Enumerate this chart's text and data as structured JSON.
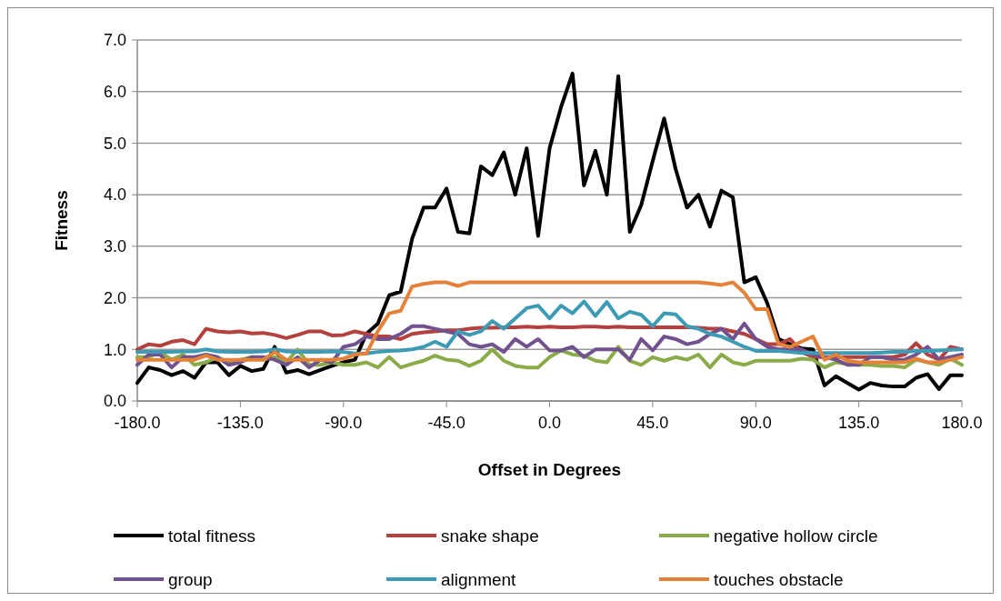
{
  "chart_data": {
    "type": "line",
    "xlabel": "Offset in Degrees",
    "ylabel": "Fitness",
    "x": [
      -180,
      -175,
      -170,
      -165,
      -160,
      -155,
      -150,
      -145,
      -140,
      -135,
      -130,
      -125,
      -120,
      -115,
      -110,
      -105,
      -100,
      -95,
      -90,
      -85,
      -80,
      -75,
      -70,
      -65,
      -60,
      -55,
      -50,
      -45,
      -40,
      -35,
      -30,
      -25,
      -20,
      -15,
      -10,
      -5,
      0,
      5,
      10,
      15,
      20,
      25,
      30,
      35,
      40,
      45,
      50,
      55,
      60,
      65,
      70,
      75,
      80,
      85,
      90,
      95,
      100,
      105,
      110,
      115,
      120,
      125,
      130,
      135,
      140,
      145,
      150,
      155,
      160,
      165,
      170,
      175,
      180
    ],
    "xlim": [
      -180,
      180
    ],
    "xticks": [
      {
        "value": -180,
        "label": "-180.0"
      },
      {
        "value": -135,
        "label": "-135.0"
      },
      {
        "value": -90,
        "label": "-90.0"
      },
      {
        "value": -45,
        "label": "-45.0"
      },
      {
        "value": 0,
        "label": "0.0"
      },
      {
        "value": 45,
        "label": "45.0"
      },
      {
        "value": 90,
        "label": "90.0"
      },
      {
        "value": 135,
        "label": "135.0"
      },
      {
        "value": 180,
        "label": "180.0"
      }
    ],
    "ylim": [
      0,
      7
    ],
    "yticks": [
      {
        "value": 0,
        "label": "0.0"
      },
      {
        "value": 1,
        "label": "1.0"
      },
      {
        "value": 2,
        "label": "2.0"
      },
      {
        "value": 3,
        "label": "3.0"
      },
      {
        "value": 4,
        "label": "4.0"
      },
      {
        "value": 5,
        "label": "5.0"
      },
      {
        "value": 6,
        "label": "6.0"
      },
      {
        "value": 7,
        "label": "7.0"
      }
    ],
    "grid": "y",
    "legend": "bottom",
    "line_style": "solid",
    "marker": "none",
    "series": [
      {
        "name": "total fitness",
        "color": "#000000",
        "values": [
          0.35,
          0.65,
          0.6,
          0.5,
          0.58,
          0.45,
          0.75,
          0.75,
          0.5,
          0.68,
          0.58,
          0.62,
          1.05,
          0.55,
          0.6,
          0.52,
          0.6,
          0.68,
          0.75,
          0.8,
          1.3,
          1.5,
          2.05,
          2.12,
          3.15,
          3.75,
          3.75,
          4.12,
          3.28,
          3.25,
          4.55,
          4.38,
          4.82,
          4.0,
          4.9,
          3.2,
          4.9,
          5.7,
          6.35,
          4.18,
          4.85,
          4.0,
          6.3,
          3.28,
          3.8,
          4.65,
          5.48,
          4.5,
          3.75,
          4.0,
          3.38,
          4.08,
          3.95,
          2.3,
          2.4,
          1.9,
          1.2,
          1.1,
          1.02,
          1.0,
          0.3,
          0.48,
          0.35,
          0.22,
          0.35,
          0.3,
          0.28,
          0.28,
          0.45,
          0.52,
          0.23,
          0.5,
          0.5
        ]
      },
      {
        "name": "snake shape",
        "color": "#b5413e",
        "values": [
          1.0,
          1.1,
          1.07,
          1.15,
          1.18,
          1.1,
          1.4,
          1.35,
          1.33,
          1.35,
          1.31,
          1.32,
          1.28,
          1.22,
          1.28,
          1.35,
          1.35,
          1.27,
          1.28,
          1.35,
          1.3,
          1.25,
          1.25,
          1.2,
          1.3,
          1.33,
          1.35,
          1.37,
          1.37,
          1.4,
          1.42,
          1.42,
          1.43,
          1.43,
          1.44,
          1.43,
          1.44,
          1.43,
          1.43,
          1.44,
          1.44,
          1.43,
          1.44,
          1.43,
          1.43,
          1.43,
          1.43,
          1.43,
          1.43,
          1.42,
          1.4,
          1.4,
          1.35,
          1.3,
          1.2,
          1.1,
          1.1,
          1.2,
          0.95,
          0.85,
          0.85,
          0.85,
          0.85,
          0.85,
          0.85,
          0.85,
          0.85,
          0.9,
          1.12,
          0.9,
          0.8,
          1.05,
          1.0
        ]
      },
      {
        "name": "negative hollow circle",
        "color": "#8aac48",
        "values": [
          0.85,
          0.85,
          0.95,
          0.8,
          0.9,
          0.7,
          0.75,
          0.85,
          0.75,
          0.8,
          0.85,
          0.8,
          0.85,
          0.75,
          1.0,
          0.7,
          0.7,
          0.75,
          0.7,
          0.7,
          0.75,
          0.65,
          0.85,
          0.65,
          0.72,
          0.78,
          0.88,
          0.8,
          0.78,
          0.68,
          0.78,
          1.0,
          0.78,
          0.68,
          0.65,
          0.65,
          0.85,
          0.98,
          0.9,
          0.88,
          0.78,
          0.75,
          1.05,
          0.78,
          0.7,
          0.85,
          0.78,
          0.85,
          0.8,
          0.9,
          0.65,
          0.9,
          0.75,
          0.7,
          0.78,
          0.78,
          0.78,
          0.78,
          0.82,
          0.8,
          0.65,
          0.75,
          0.72,
          0.7,
          0.7,
          0.68,
          0.68,
          0.65,
          0.8,
          0.75,
          0.7,
          0.82,
          0.7
        ]
      },
      {
        "name": "group",
        "color": "#71528f",
        "values": [
          0.7,
          0.9,
          0.9,
          0.65,
          0.85,
          0.85,
          0.9,
          0.85,
          0.7,
          0.75,
          0.85,
          0.85,
          0.8,
          0.7,
          0.85,
          0.65,
          0.8,
          0.75,
          1.05,
          1.1,
          1.25,
          1.2,
          1.2,
          1.3,
          1.45,
          1.45,
          1.4,
          1.35,
          1.3,
          1.1,
          1.05,
          1.1,
          0.95,
          1.2,
          1.05,
          1.2,
          0.98,
          0.98,
          1.05,
          0.85,
          1.0,
          1.0,
          1.0,
          0.8,
          1.2,
          0.98,
          1.25,
          1.2,
          1.1,
          1.15,
          1.3,
          1.4,
          1.2,
          1.5,
          1.2,
          1.05,
          1.0,
          1.0,
          1.0,
          0.9,
          0.85,
          0.8,
          0.7,
          0.7,
          0.85,
          0.85,
          0.8,
          0.8,
          0.9,
          1.05,
          0.8,
          0.85,
          0.9
        ]
      },
      {
        "name": "alignment",
        "color": "#3d9bb5",
        "values": [
          0.95,
          0.95,
          0.95,
          0.95,
          0.96,
          0.96,
          1.0,
          0.96,
          0.95,
          0.95,
          0.95,
          0.96,
          1.0,
          0.96,
          0.95,
          0.95,
          0.95,
          0.96,
          0.95,
          0.92,
          0.92,
          0.95,
          0.97,
          0.98,
          1.0,
          1.05,
          1.15,
          1.05,
          1.35,
          1.28,
          1.35,
          1.55,
          1.4,
          1.6,
          1.8,
          1.85,
          1.6,
          1.85,
          1.7,
          1.93,
          1.65,
          1.92,
          1.6,
          1.73,
          1.67,
          1.45,
          1.7,
          1.68,
          1.45,
          1.4,
          1.3,
          1.25,
          1.15,
          1.05,
          0.97,
          0.97,
          0.97,
          0.95,
          0.93,
          0.93,
          0.93,
          0.93,
          0.93,
          0.93,
          0.93,
          0.94,
          0.95,
          0.95,
          0.97,
          0.97,
          0.98,
          0.99,
          1.0
        ]
      },
      {
        "name": "touches obstacle",
        "color": "#e4823a",
        "values": [
          0.8,
          0.8,
          0.8,
          0.8,
          0.8,
          0.8,
          0.88,
          0.8,
          0.8,
          0.8,
          0.8,
          0.8,
          0.95,
          0.8,
          0.8,
          0.8,
          0.8,
          0.8,
          0.82,
          0.9,
          0.92,
          1.35,
          1.7,
          1.75,
          2.22,
          2.27,
          2.3,
          2.3,
          2.23,
          2.3,
          2.3,
          2.3,
          2.3,
          2.3,
          2.3,
          2.3,
          2.3,
          2.3,
          2.3,
          2.3,
          2.3,
          2.3,
          2.3,
          2.3,
          2.3,
          2.3,
          2.3,
          2.3,
          2.3,
          2.3,
          2.28,
          2.25,
          2.3,
          2.1,
          1.78,
          1.78,
          1.1,
          1.05,
          1.15,
          1.25,
          0.8,
          0.9,
          0.78,
          0.75,
          0.75,
          0.75,
          0.75,
          0.75,
          0.82,
          0.75,
          0.75,
          0.8,
          0.85
        ]
      }
    ]
  }
}
